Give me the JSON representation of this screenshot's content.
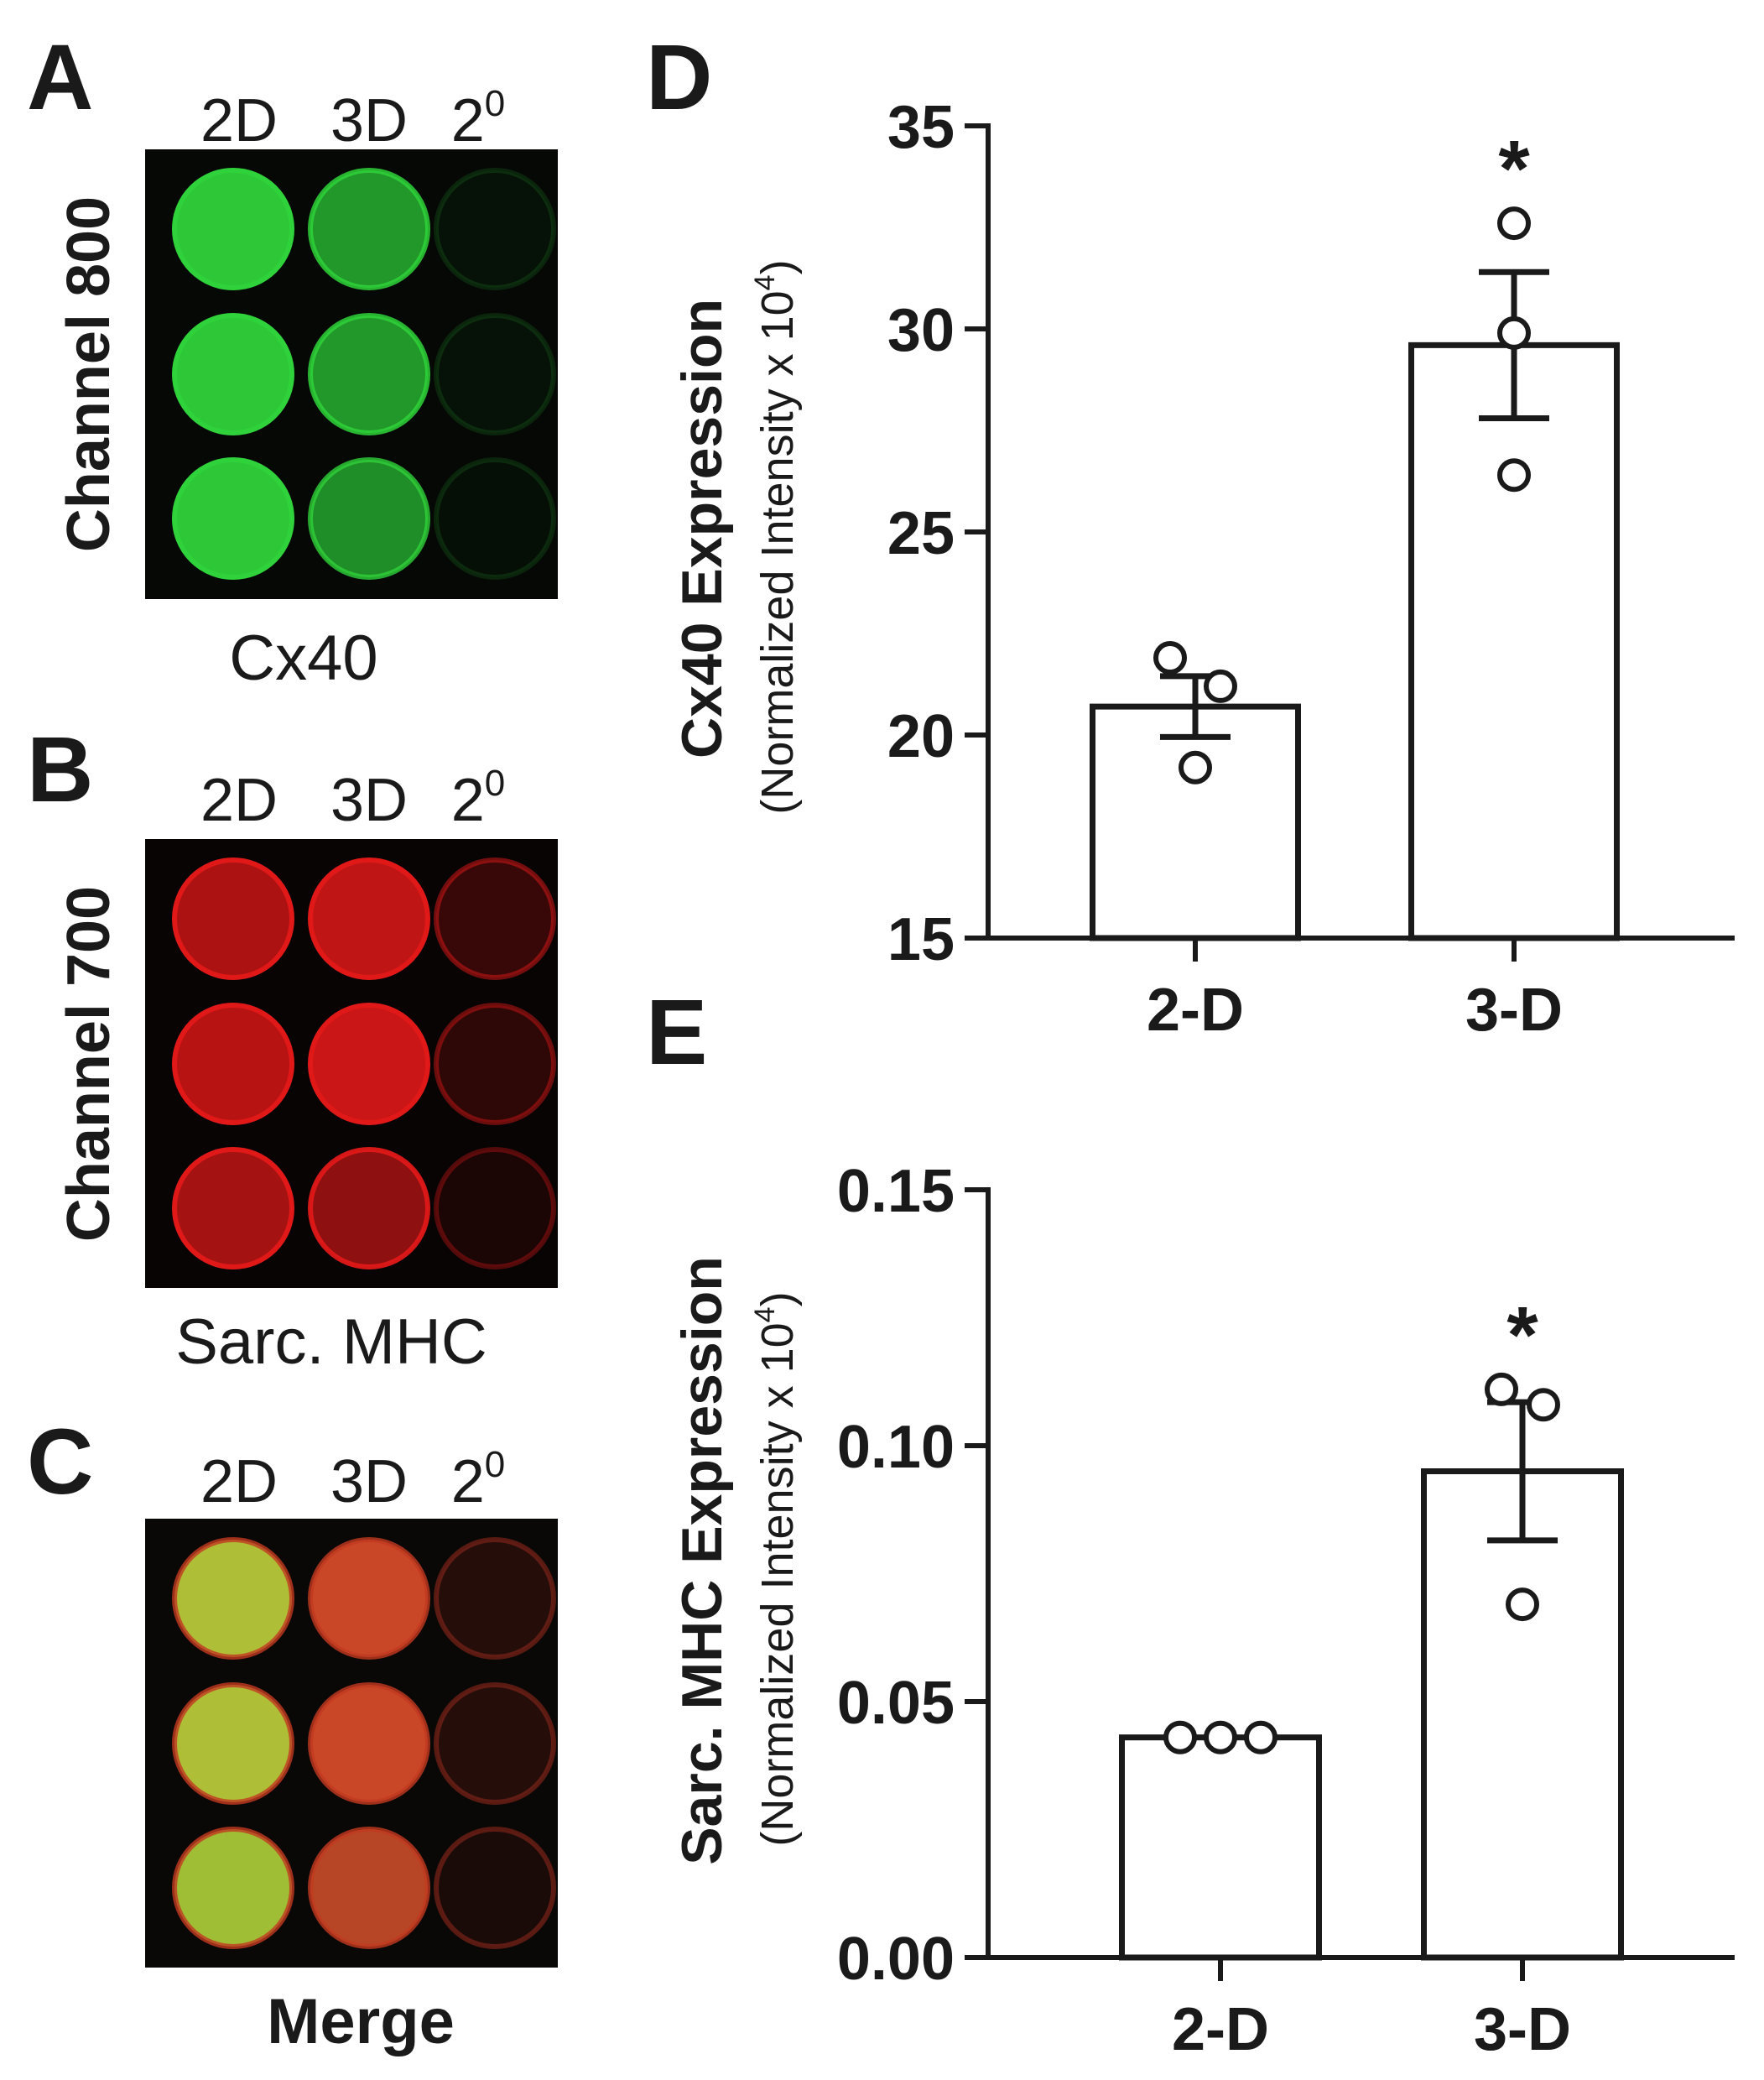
{
  "panels": {
    "A": {
      "letter": "A",
      "columns": [
        {
          "text": "2D",
          "sup": ""
        },
        {
          "text": "3D",
          "sup": ""
        },
        {
          "text": "2",
          "sup": "0"
        }
      ],
      "side_label": "Channel 800",
      "under_label": "Cx40",
      "well_color": "#2fd23a",
      "well_intensity": [
        [
          1.0,
          0.75,
          0.05
        ],
        [
          1.0,
          0.75,
          0.05
        ],
        [
          1.0,
          0.7,
          0.04
        ]
      ]
    },
    "B": {
      "letter": "B",
      "columns": [
        {
          "text": "2D",
          "sup": ""
        },
        {
          "text": "3D",
          "sup": ""
        },
        {
          "text": "2",
          "sup": "0"
        }
      ],
      "side_label": "Channel 700",
      "under_label": "Sarc. MHC",
      "well_color": "#e01818",
      "well_intensity": [
        [
          0.85,
          0.95,
          0.25
        ],
        [
          0.9,
          1.0,
          0.2
        ],
        [
          0.8,
          0.7,
          0.1
        ]
      ]
    },
    "C": {
      "letter": "C",
      "columns": [
        {
          "text": "2D",
          "sup": ""
        },
        {
          "text": "3D",
          "sup": ""
        },
        {
          "text": "2",
          "sup": "0"
        }
      ],
      "under_label": "Merge",
      "well_colors": [
        [
          "#b8c83a",
          "#d44a28",
          "#5a1a14"
        ],
        [
          "#b8c83a",
          "#d44a28",
          "#5a1a14"
        ],
        [
          "#a8c838",
          "#c04a28",
          "#3a1210"
        ]
      ]
    }
  },
  "chart_data": [
    {
      "letter": "D",
      "type": "bar",
      "categories": [
        "2-D",
        "3-D"
      ],
      "values": [
        20.7,
        29.6
      ],
      "error": [
        0.75,
        1.8
      ],
      "points": [
        [
          21.9,
          21.2,
          19.2
        ],
        [
          32.6,
          29.9,
          26.4
        ]
      ],
      "significance": [
        "",
        "*"
      ],
      "ylabel": "Cx40 Expression",
      "ylabel_sub": "(Normalized Intensity x 10",
      "ylabel_sup": "4",
      "ylabel_close": ")",
      "ylim": [
        15,
        35
      ],
      "yticks": [
        15,
        20,
        25,
        30,
        35
      ],
      "ytick_labels": [
        "15",
        "20",
        "25",
        "30",
        "35"
      ]
    },
    {
      "letter": "E",
      "type": "bar",
      "categories": [
        "2-D",
        "3-D"
      ],
      "values": [
        0.043,
        0.095
      ],
      "error": [
        0.0,
        0.0135
      ],
      "points": [
        [
          0.043,
          0.043,
          0.043
        ],
        [
          0.111,
          0.108,
          0.069
        ]
      ],
      "significance": [
        "",
        "*"
      ],
      "ylabel": "Sarc. MHC Expression",
      "ylabel_sub": "(Normalized Intensity x 10",
      "ylabel_sup": "4",
      "ylabel_close": ")",
      "ylim": [
        0,
        0.15
      ],
      "yticks": [
        0,
        0.05,
        0.1,
        0.15
      ],
      "ytick_labels": [
        "0.00",
        "0.05",
        "0.10",
        "0.15"
      ]
    }
  ]
}
